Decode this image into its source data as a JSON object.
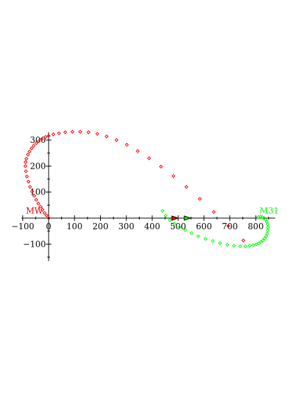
{
  "chart_data": {
    "type": "scatter",
    "title": "",
    "xlabel": "",
    "ylabel": "",
    "xlim": [
      -105,
      875
    ],
    "ylim": [
      -165,
      330
    ],
    "grid": false,
    "x_ticks": [
      -100,
      0,
      100,
      200,
      300,
      400,
      500,
      600,
      700,
      800
    ],
    "x_tick_labels": [
      "−100",
      "0",
      "100",
      "200",
      "300",
      "400",
      "500",
      "600",
      "700",
      "800"
    ],
    "y_ticks": [
      -100,
      100,
      200,
      300
    ],
    "y_tick_labels": [
      "−100",
      "100",
      "200",
      "300"
    ],
    "annotations": [
      {
        "text": "MW",
        "x": -55,
        "y": 18,
        "color": "#ff0000"
      },
      {
        "text": "M31",
        "x": 852,
        "y": 18,
        "color": "#00ff00"
      }
    ],
    "markers": [
      {
        "x": 500,
        "y": 0,
        "color": "#ff0000"
      },
      {
        "x": 548,
        "y": 0,
        "color": "#00ff00"
      }
    ],
    "series": [
      {
        "color": "#ff0000",
        "points": [
          [
            0,
            0
          ],
          [
            -8,
            10
          ],
          [
            -16,
            20
          ],
          [
            -24,
            32
          ],
          [
            -32,
            44
          ],
          [
            -40,
            56
          ],
          [
            -48,
            70
          ],
          [
            -56,
            86
          ],
          [
            -64,
            102
          ],
          [
            -72,
            120
          ],
          [
            -78,
            140
          ],
          [
            -84,
            160
          ],
          [
            -88,
            180
          ],
          [
            -90,
            200
          ],
          [
            -89,
            215
          ],
          [
            -86,
            228
          ],
          [
            -80,
            244
          ],
          [
            -74,
            256
          ],
          [
            -66,
            268
          ],
          [
            -58,
            278
          ],
          [
            -48,
            288
          ],
          [
            -38,
            296
          ],
          [
            -26,
            304
          ],
          [
            -12,
            312
          ],
          [
            0,
            316
          ],
          [
            18,
            322
          ],
          [
            40,
            326
          ],
          [
            64,
            330
          ],
          [
            92,
            332
          ],
          [
            122,
            332
          ],
          [
            154,
            330
          ],
          [
            188,
            324
          ],
          [
            224,
            314
          ],
          [
            262,
            300
          ],
          [
            302,
            282
          ],
          [
            344,
            258
          ],
          [
            388,
            230
          ],
          [
            434,
            198
          ],
          [
            482,
            162
          ],
          [
            532,
            120
          ],
          [
            584,
            74
          ],
          [
            638,
            24
          ],
          [
            694,
            -30
          ],
          [
            752,
            -86
          ]
        ]
      },
      {
        "color": "#00ff00",
        "points": [
          [
            440,
            28
          ],
          [
            452,
            10
          ],
          [
            468,
            -8
          ],
          [
            486,
            -22
          ],
          [
            506,
            -34
          ],
          [
            528,
            -46
          ],
          [
            552,
            -58
          ],
          [
            578,
            -70
          ],
          [
            606,
            -80
          ],
          [
            634,
            -88
          ],
          [
            662,
            -96
          ],
          [
            690,
            -102
          ],
          [
            716,
            -106
          ],
          [
            740,
            -108
          ],
          [
            760,
            -108
          ],
          [
            776,
            -106
          ],
          [
            790,
            -104
          ],
          [
            802,
            -101
          ],
          [
            812,
            -97
          ],
          [
            820,
            -92
          ],
          [
            828,
            -86
          ],
          [
            835,
            -78
          ],
          [
            840,
            -70
          ],
          [
            844,
            -60
          ],
          [
            846,
            -48
          ],
          [
            847,
            -36
          ],
          [
            846,
            -24
          ],
          [
            843,
            -14
          ],
          [
            838,
            -6
          ],
          [
            832,
            0
          ],
          [
            825,
            4
          ],
          [
            818,
            6
          ],
          [
            810,
            4
          ]
        ]
      }
    ]
  }
}
